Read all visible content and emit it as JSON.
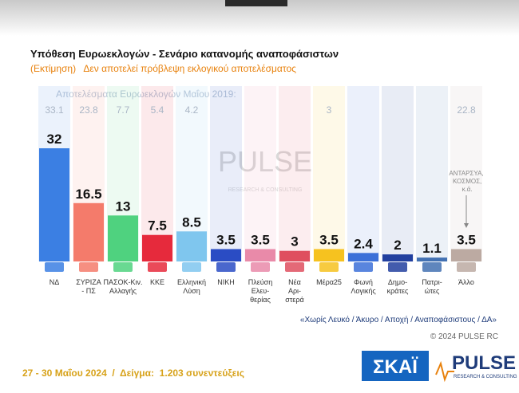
{
  "chart_data": {
    "type": "bar",
    "title": "Υπόθεση Ευρωεκλογών - Σενάριο κατανομής αναποφάσιστων",
    "subtitle": "(Εκτίμηση)   Δεν αποτελεί πρόβλεψη εκλογικού αποτελέσματος",
    "previous_label": "Αποτελέσματα Ευρωεκλογών Μαΐου 2019:",
    "categories": [
      [
        "ΝΔ"
      ],
      [
        "ΣΥΡΙΖΑ",
        "- ΠΣ"
      ],
      [
        "ΠΑΣΟΚ-Κιν.",
        "Αλλαγής"
      ],
      [
        "ΚΚΕ"
      ],
      [
        "Ελληνική",
        "Λύση"
      ],
      [
        "ΝΙΚΗ"
      ],
      [
        "Πλεύση",
        "Ελευ-",
        "θερίας"
      ],
      [
        "Νέα",
        "Αρι-",
        "στερά"
      ],
      [
        "Μέρα25"
      ],
      [
        "Φωνή",
        "Λογικής"
      ],
      [
        "Δημο-",
        "κράτες"
      ],
      [
        "Πατρι-",
        "ώτες"
      ],
      [
        "Άλλο"
      ]
    ],
    "values": [
      32,
      16.5,
      13,
      7.5,
      8.5,
      3.5,
      3.5,
      3,
      3.5,
      2.4,
      2,
      1.1,
      3.5
    ],
    "previous_values": [
      33.1,
      23.8,
      7.7,
      5.4,
      4.2,
      null,
      null,
      null,
      3,
      null,
      null,
      null,
      22.8
    ],
    "colors": [
      "#3b7fe3",
      "#f47b6b",
      "#4fd27f",
      "#e62a3c",
      "#7fc6ee",
      "#2a4cc4",
      "#e98aa9",
      "#df4f5f",
      "#f6c21f",
      "#3c70d8",
      "#22409f",
      "#4371b2",
      "#bcaaa2"
    ],
    "annotation": "ΑΝΤΑΡΣΥΑ, ΚΟΣΜΟΣ, κ.ά.",
    "footnote": "«Χωρίς Λευκό / Άκυρο / Αποχή / Αναποφάσιστους / ΔΑ»",
    "copyright": "© 2024 PULSE RC",
    "fieldwork": "27 - 30 Μαΐου 2024  /  Δείγμα:  1.203 συνεντεύξεις",
    "watermark": "PULSE",
    "watermark_sub": "RESEARCH & CONSULTING",
    "logo_left": "ΣΚΑΪ",
    "logo_right": "PULSE",
    "logo_right_sub": "RESEARCH & CONSULTING"
  }
}
